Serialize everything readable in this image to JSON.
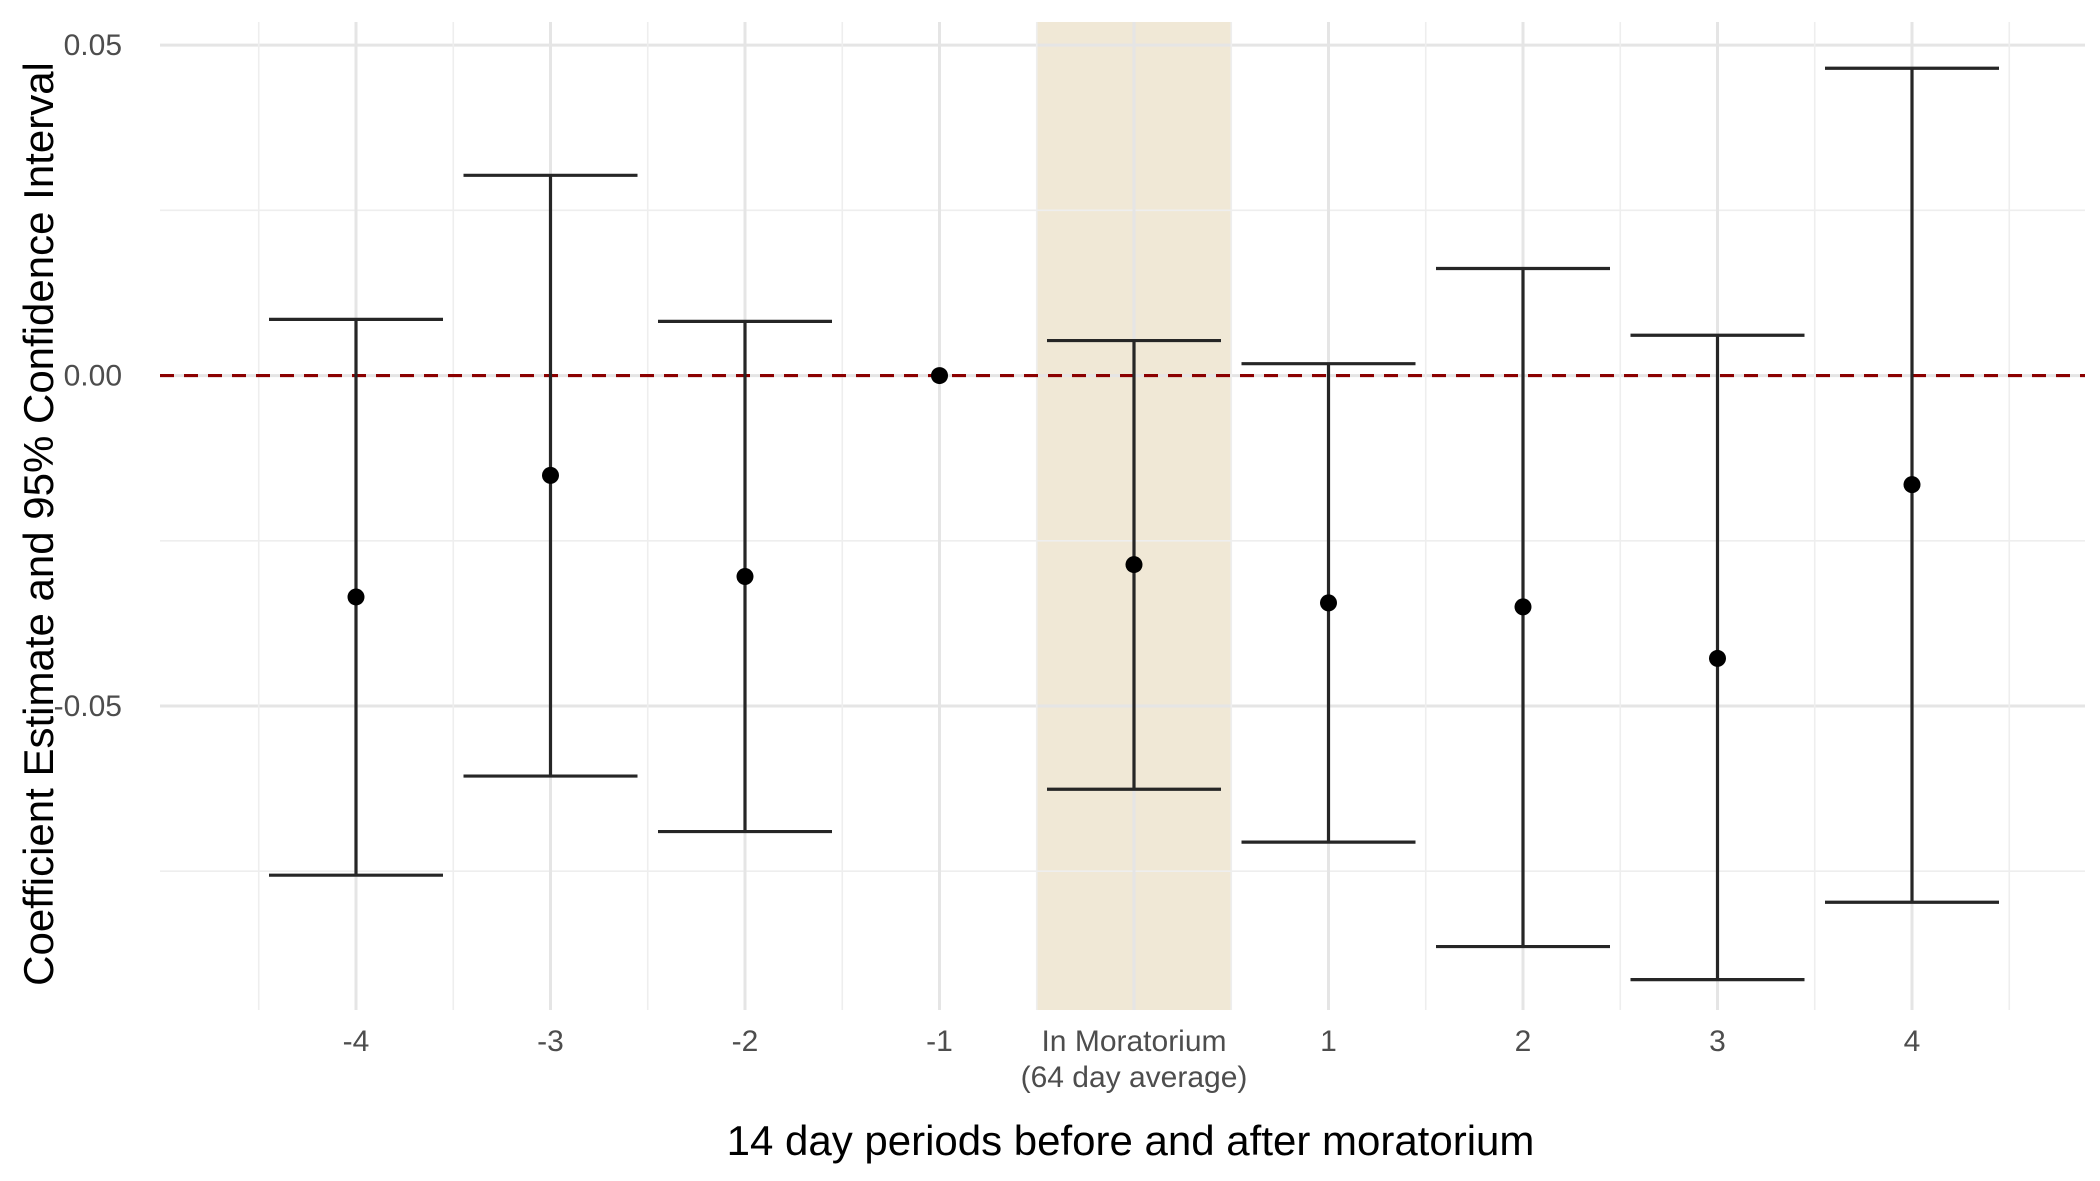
{
  "chart_data": {
    "type": "errorbar",
    "title": "",
    "xlabel": "14 day periods before and after moratorium",
    "ylabel": "Coefficient Estimate and 95% Confidence Interval",
    "ylim": [
      -0.096,
      0.0535
    ],
    "yticks": [
      -0.05,
      0.0,
      0.05
    ],
    "ytick_labels": [
      "-0.05",
      "0.00",
      "0.05"
    ],
    "grid": true,
    "reference_line": {
      "y": 0,
      "style": "dashed",
      "color": "#8b0000"
    },
    "highlight": {
      "category": "In Moratorium\n(64 day average)",
      "color": "#f0e8d6"
    },
    "categories": [
      "-4",
      "-3",
      "-2",
      "-1",
      "In Moratorium\n(64 day average)",
      "1",
      "2",
      "3",
      "4"
    ],
    "estimates": [
      -0.0335,
      -0.0151,
      -0.0304,
      0.0,
      -0.0286,
      -0.0344,
      -0.035,
      -0.0428,
      -0.0165
    ],
    "ci_lower": [
      -0.0756,
      -0.0606,
      -0.069,
      null,
      -0.0626,
      -0.0706,
      -0.0864,
      -0.0914,
      -0.0797
    ],
    "ci_upper": [
      0.0085,
      0.0303,
      0.0082,
      null,
      0.0053,
      0.0018,
      0.0162,
      0.0061,
      0.0465
    ]
  }
}
